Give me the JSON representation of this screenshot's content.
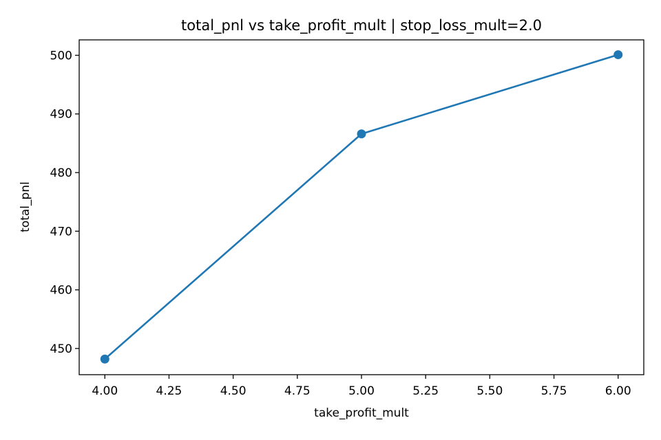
{
  "chart_data": {
    "type": "line",
    "title": "total_pnl vs take_profit_mult | stop_loss_mult=2.0",
    "xlabel": "take_profit_mult",
    "ylabel": "total_pnl",
    "x": [
      4.0,
      5.0,
      6.0
    ],
    "series": [
      {
        "values": [
          448.2,
          486.6,
          500.1
        ],
        "color": "#1f77b4",
        "marker": "circle"
      }
    ],
    "xlim": [
      3.9,
      6.1
    ],
    "ylim": [
      445.53,
      502.63
    ],
    "xticks": [
      4.0,
      4.25,
      4.5,
      4.75,
      5.0,
      5.25,
      5.5,
      5.75,
      6.0
    ],
    "xtick_labels": [
      "4.00",
      "4.25",
      "4.50",
      "4.75",
      "5.00",
      "5.25",
      "5.50",
      "5.75",
      "6.00"
    ],
    "yticks": [
      450,
      460,
      470,
      480,
      490,
      500
    ],
    "ytick_labels": [
      "450",
      "460",
      "470",
      "480",
      "490",
      "500"
    ],
    "grid": false,
    "legend": "none"
  }
}
